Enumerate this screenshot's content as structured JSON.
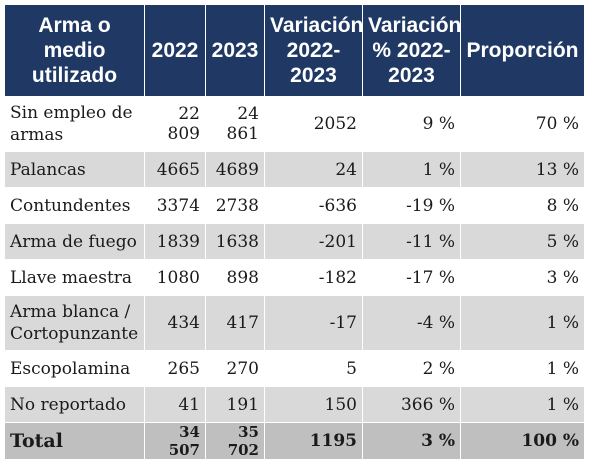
{
  "table": {
    "headers": [
      "Arma o medio utilizado",
      "2022",
      "2023",
      "Variación 2022-2023",
      "Variación % 2022-2023",
      "Proporción"
    ],
    "rows": [
      {
        "label": "Sin empleo de armas",
        "y2022": "22 809",
        "y2023": "24 861",
        "variation": "2052",
        "variation_pct": "9 %",
        "proportion": "70 %"
      },
      {
        "label": "Palancas",
        "y2022": "4665",
        "y2023": "4689",
        "variation": "24",
        "variation_pct": "1 %",
        "proportion": "13 %"
      },
      {
        "label": "Contundentes",
        "y2022": "3374",
        "y2023": "2738",
        "variation": "-636",
        "variation_pct": "-19 %",
        "proportion": "8 %"
      },
      {
        "label": "Arma de fuego",
        "y2022": "1839",
        "y2023": "1638",
        "variation": "-201",
        "variation_pct": "-11 %",
        "proportion": "5 %"
      },
      {
        "label": "Llave maestra",
        "y2022": "1080",
        "y2023": "898",
        "variation": "-182",
        "variation_pct": "-17 %",
        "proportion": "3 %"
      },
      {
        "label": "Arma blanca / Cortopunzante",
        "y2022": "434",
        "y2023": "417",
        "variation": "-17",
        "variation_pct": "-4 %",
        "proportion": "1 %"
      },
      {
        "label": "Escopolamina",
        "y2022": "265",
        "y2023": "270",
        "variation": "5",
        "variation_pct": "2 %",
        "proportion": "1 %"
      },
      {
        "label": "No reportado",
        "y2022": "41",
        "y2023": "191",
        "variation": "150",
        "variation_pct": "366 %",
        "proportion": "1 %"
      }
    ],
    "total": {
      "label": "Total",
      "y2022": "34 507",
      "y2023": "35 702",
      "variation": "1195",
      "variation_pct": "3 %",
      "proportion": "100 %"
    }
  },
  "colors": {
    "header_bg": "#1f3864",
    "stripe": "#d9d9d9",
    "total_bg": "#bfbfbf"
  }
}
